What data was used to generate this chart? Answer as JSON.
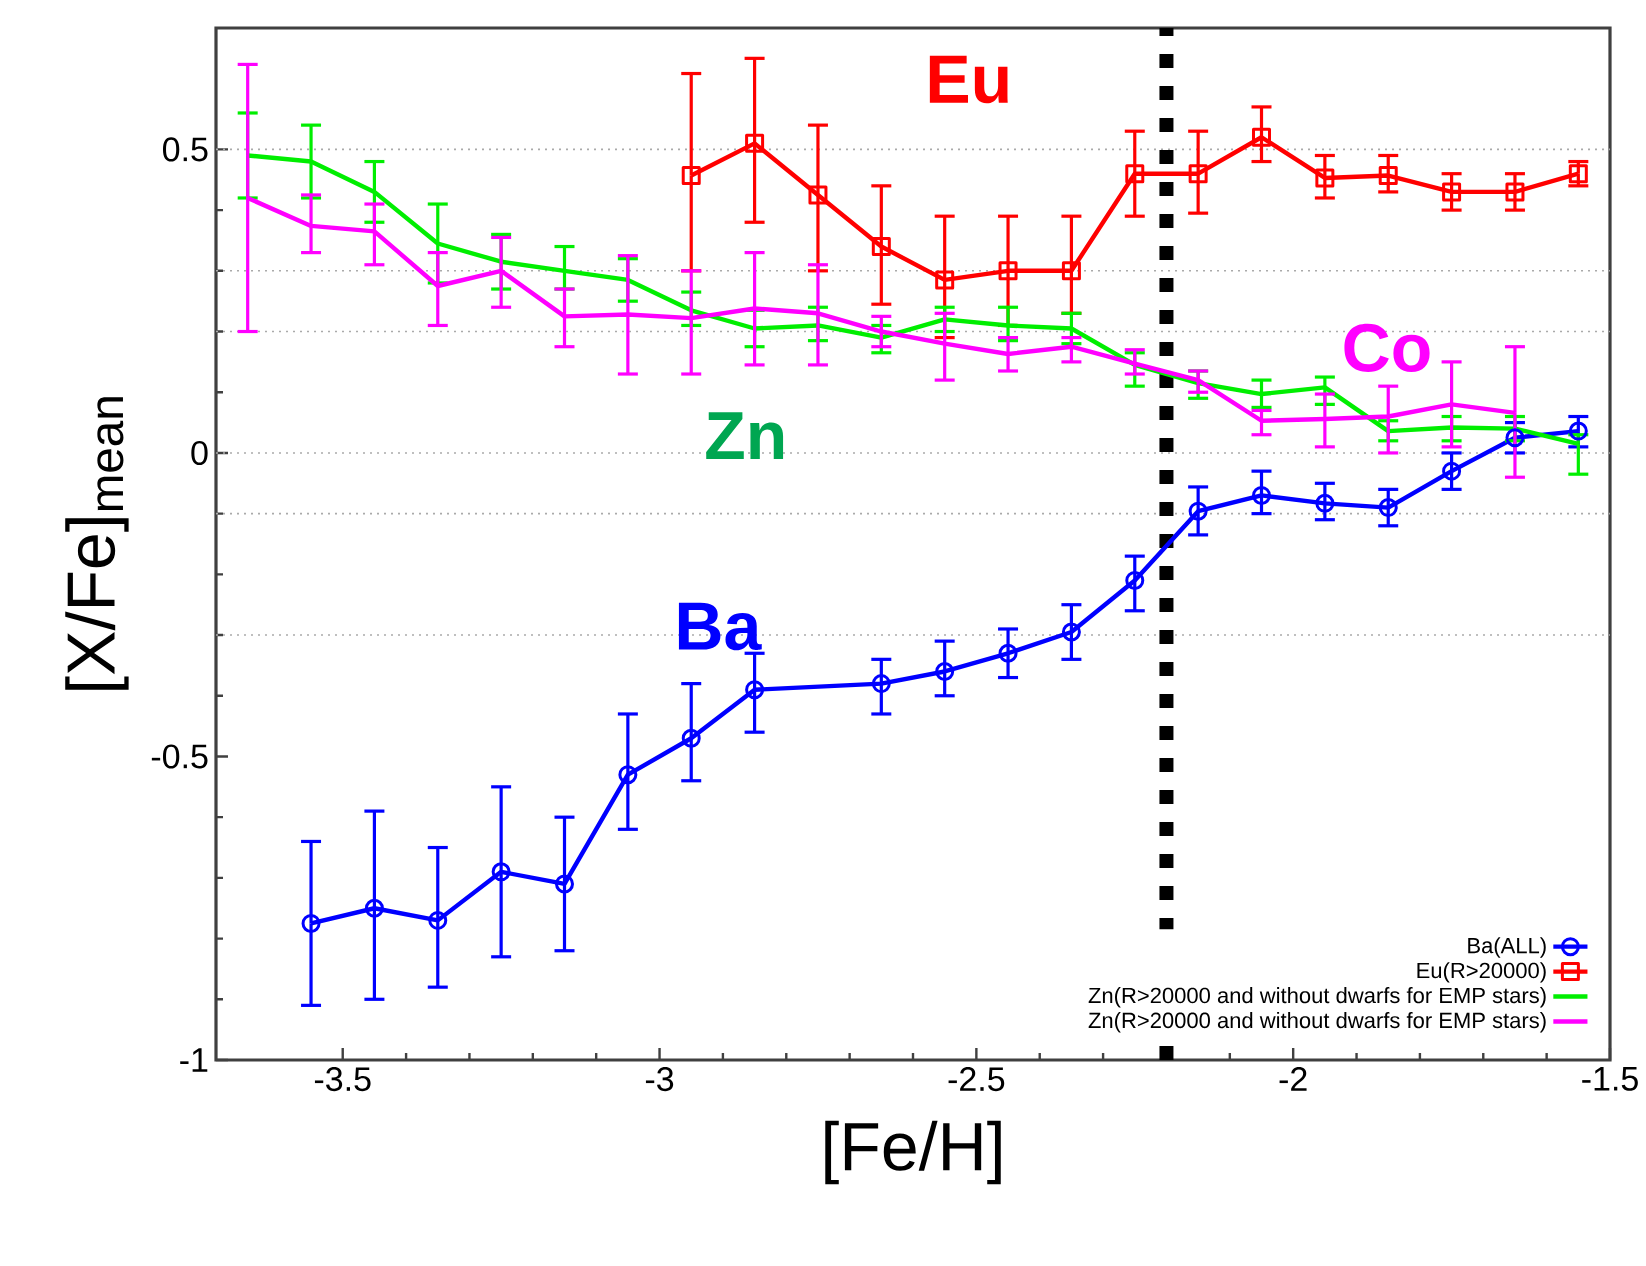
{
  "chart_data": {
    "type": "line",
    "xlabel": "[Fe/H]",
    "ylabel": "[X/Fe]$_{mean}$",
    "xlim": [
      -3.7,
      -1.5
    ],
    "ylim": [
      -1,
      0.7
    ],
    "xticks": [
      -3.5,
      -3,
      -2.5,
      -2,
      -1.5
    ],
    "yticks": [
      -1,
      -0.5,
      0,
      0.5
    ],
    "legend": "bottom right",
    "series": [
      {
        "name": "Ba(ALL)",
        "color": "#0000ff",
        "marker": "circle",
        "x": [
          -3.55,
          -3.45,
          -3.35,
          -3.25,
          -3.15,
          -3.05,
          -2.95,
          -2.85,
          -2.65,
          -2.55,
          -2.45,
          -2.35,
          -2.25,
          -2.15,
          -2.05,
          -1.95,
          -1.85,
          -1.75,
          -1.65,
          -1.55
        ],
        "values": [
          -0.775,
          -0.75,
          -0.77,
          -0.69,
          -0.71,
          -0.53,
          -0.47,
          -0.39,
          -0.38,
          -0.36,
          -0.33,
          -0.295,
          -0.21,
          -0.096,
          -0.07,
          -0.083,
          -0.09,
          -0.03,
          0.025,
          0.036
        ],
        "errors": [
          [
            -0.91,
            -0.64
          ],
          [
            -0.9,
            -0.59
          ],
          [
            -0.88,
            -0.65
          ],
          [
            -0.83,
            -0.55
          ],
          [
            -0.82,
            -0.6
          ],
          [
            -0.62,
            -0.43
          ],
          [
            -0.54,
            -0.38
          ],
          [
            -0.46,
            -0.33
          ],
          [
            -0.43,
            -0.34
          ],
          [
            -0.4,
            -0.31
          ],
          [
            -0.37,
            -0.29
          ],
          [
            -0.34,
            -0.25
          ],
          [
            -0.26,
            -0.17
          ],
          [
            -0.135,
            -0.056
          ],
          [
            -0.1,
            -0.03
          ],
          [
            -0.11,
            -0.05
          ],
          [
            -0.12,
            -0.06
          ],
          [
            -0.06,
            0.0
          ],
          [
            0.0,
            0.05
          ],
          [
            0.01,
            0.06
          ]
        ]
      },
      {
        "name": "Eu(R>20000)",
        "color": "#ff0000",
        "marker": "square",
        "x": [
          -2.95,
          -2.85,
          -2.75,
          -2.65,
          -2.55,
          -2.45,
          -2.35,
          -2.25,
          -2.15,
          -2.05,
          -1.95,
          -1.85,
          -1.75,
          -1.65,
          -1.55
        ],
        "values": [
          0.457,
          0.51,
          0.425,
          0.34,
          0.285,
          0.3,
          0.3,
          0.46,
          0.46,
          0.52,
          0.453,
          0.457,
          0.43,
          0.43,
          0.46
        ],
        "errors": [
          [
            0.3,
            0.625
          ],
          [
            0.38,
            0.65
          ],
          [
            0.3,
            0.54
          ],
          [
            0.245,
            0.44
          ],
          [
            0.19,
            0.39
          ],
          [
            0.21,
            0.39
          ],
          [
            0.23,
            0.39
          ],
          [
            0.39,
            0.53
          ],
          [
            0.395,
            0.53
          ],
          [
            0.48,
            0.57
          ],
          [
            0.42,
            0.49
          ],
          [
            0.43,
            0.49
          ],
          [
            0.4,
            0.46
          ],
          [
            0.4,
            0.46
          ],
          [
            0.44,
            0.48
          ]
        ]
      },
      {
        "name": "Zn(R>20000 and without dwarfs for EMP stars)",
        "color": "#00ee00",
        "marker": "none",
        "x": [
          -3.65,
          -3.55,
          -3.45,
          -3.35,
          -3.25,
          -3.15,
          -3.05,
          -2.95,
          -2.85,
          -2.75,
          -2.65,
          -2.55,
          -2.45,
          -2.35,
          -2.25,
          -2.15,
          -2.05,
          -1.95,
          -1.85,
          -1.75,
          -1.65,
          -1.55
        ],
        "values": [
          0.49,
          0.48,
          0.43,
          0.345,
          0.315,
          0.3,
          0.285,
          0.235,
          0.205,
          0.21,
          0.19,
          0.22,
          0.21,
          0.205,
          0.145,
          0.115,
          0.097,
          0.108,
          0.036,
          0.042,
          0.04,
          0.015
        ],
        "errors": [
          [
            0.42,
            0.56
          ],
          [
            0.42,
            0.54
          ],
          [
            0.38,
            0.48
          ],
          [
            0.28,
            0.41
          ],
          [
            0.27,
            0.36
          ],
          [
            0.27,
            0.34
          ],
          [
            0.25,
            0.32
          ],
          [
            0.21,
            0.265
          ],
          [
            0.175,
            0.235
          ],
          [
            0.185,
            0.24
          ],
          [
            0.165,
            0.21
          ],
          [
            0.2,
            0.24
          ],
          [
            0.185,
            0.24
          ],
          [
            0.18,
            0.23
          ],
          [
            0.11,
            0.165
          ],
          [
            0.09,
            0.135
          ],
          [
            0.075,
            0.12
          ],
          [
            0.08,
            0.125
          ],
          [
            0.02,
            0.053
          ],
          [
            0.02,
            0.06
          ],
          [
            0.02,
            0.06
          ],
          [
            -0.035,
            0.03
          ]
        ]
      },
      {
        "name": "Zn(R>20000 and without dwarfs for EMP stars)",
        "color": "#ff00ff",
        "marker": "none",
        "x": [
          -3.65,
          -3.55,
          -3.45,
          -3.35,
          -3.25,
          -3.15,
          -3.05,
          -2.95,
          -2.85,
          -2.75,
          -2.65,
          -2.55,
          -2.45,
          -2.35,
          -2.25,
          -2.15,
          -2.05,
          -1.95,
          -1.85,
          -1.75,
          -1.65
        ],
        "values": [
          0.42,
          0.374,
          0.365,
          0.275,
          0.3,
          0.225,
          0.228,
          0.222,
          0.238,
          0.23,
          0.2,
          0.18,
          0.163,
          0.175,
          0.147,
          0.12,
          0.053,
          0.056,
          0.06,
          0.08,
          0.066
        ],
        "errors": [
          [
            0.2,
            0.64
          ],
          [
            0.33,
            0.425
          ],
          [
            0.31,
            0.41
          ],
          [
            0.21,
            0.33
          ],
          [
            0.24,
            0.355
          ],
          [
            0.175,
            0.27
          ],
          [
            0.13,
            0.325
          ],
          [
            0.13,
            0.3
          ],
          [
            0.145,
            0.33
          ],
          [
            0.145,
            0.31
          ],
          [
            0.175,
            0.225
          ],
          [
            0.12,
            0.23
          ],
          [
            0.135,
            0.19
          ],
          [
            0.15,
            0.19
          ],
          [
            0.13,
            0.17
          ],
          [
            0.1,
            0.135
          ],
          [
            0.03,
            0.07
          ],
          [
            0.01,
            0.097
          ],
          [
            0.0,
            0.11
          ],
          [
            0.01,
            0.15
          ],
          [
            -0.04,
            0.175
          ]
        ]
      }
    ],
    "annotations": [
      "Ba",
      "Eu",
      "Zn",
      "Co"
    ],
    "ref_lines": [
      {
        "axis": "y",
        "value": 0.5,
        "color": "#aaaaaa",
        "line_style": "dotted"
      },
      {
        "axis": "y",
        "value": 0.3,
        "color": "#aaaaaa",
        "line_style": "dotted"
      },
      {
        "axis": "y",
        "value": 0.2,
        "color": "#aaaaaa",
        "line_style": "dotted"
      },
      {
        "axis": "y",
        "value": 0,
        "color": "#aaaaaa",
        "line_style": "dotted"
      },
      {
        "axis": "y",
        "value": -0.1,
        "color": "#aaaaaa",
        "line_style": "dotted"
      },
      {
        "axis": "y",
        "value": -0.3,
        "color": "#aaaaaa",
        "line_style": "dotted"
      },
      {
        "axis": "x",
        "value": -2.2,
        "color": "#000000",
        "line_style": "dashed"
      }
    ]
  }
}
